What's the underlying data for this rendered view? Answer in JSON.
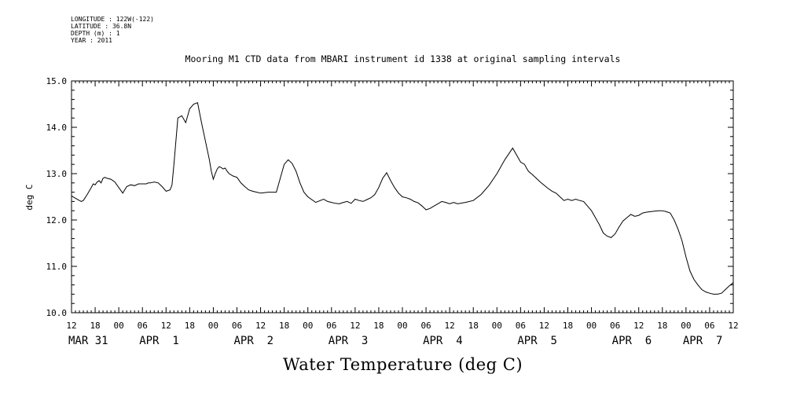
{
  "header": {
    "longitude": "LONGITUDE : 122W(-122)",
    "latitude": "LATITUDE : 36.8N",
    "depth": "DEPTH (m) : 1",
    "year": "YEAR : 2011"
  },
  "chart_data": {
    "type": "line",
    "title": "Mooring M1 CTD data from MBARI instrument id 1338 at original sampling intervals",
    "xlabel": "Water Temperature (deg C)",
    "ylabel": "deg C",
    "ylim": [
      10.0,
      15.0
    ],
    "xlim_hours": [
      0,
      168
    ],
    "y_ticks": [
      "10.0",
      "11.0",
      "12.0",
      "13.0",
      "14.0",
      "15.0"
    ],
    "hour_tick_labels": [
      "12",
      "18",
      "00",
      "06",
      "12",
      "18",
      "00",
      "06",
      "12",
      "18",
      "00",
      "06",
      "12",
      "18",
      "00",
      "06",
      "12",
      "18",
      "00",
      "06",
      "12",
      "18",
      "00",
      "06",
      "12",
      "18",
      "00",
      "06",
      "12"
    ],
    "date_labels": [
      {
        "text": "MAR 31",
        "hour": 0
      },
      {
        "text": "APR  1",
        "hour": 18
      },
      {
        "text": "APR  2",
        "hour": 42
      },
      {
        "text": "APR  3",
        "hour": 66
      },
      {
        "text": "APR  4",
        "hour": 90
      },
      {
        "text": "APR  5",
        "hour": 114
      },
      {
        "text": "APR  6",
        "hour": 138
      },
      {
        "text": "APR  7",
        "hour": 156
      }
    ],
    "grid": false,
    "series": [
      {
        "x": [
          0,
          1,
          2,
          2.5,
          3,
          4,
          5,
          5.5,
          6,
          6.5,
          7,
          7.5,
          8,
          8.5,
          9,
          10,
          11,
          12,
          13,
          14,
          15,
          16,
          17,
          18,
          19,
          19.5,
          20,
          21,
          22,
          23,
          24,
          25,
          25.5,
          26,
          27,
          28,
          29,
          30,
          31,
          32,
          33,
          34,
          34.5,
          35,
          35.5,
          36,
          36.5,
          37,
          37.5,
          38,
          38.5,
          39,
          39.5,
          40,
          41,
          42,
          43,
          44,
          45,
          46,
          47,
          48,
          50,
          52,
          53,
          54,
          55,
          56,
          57,
          58,
          59,
          60,
          62,
          64,
          65,
          66,
          67,
          68,
          69,
          70,
          71,
          72,
          73,
          74,
          75,
          76,
          77,
          78,
          79,
          80,
          81,
          82,
          83,
          84,
          85,
          86,
          87,
          88,
          89,
          90,
          91,
          92,
          93,
          94,
          95,
          96,
          97,
          98,
          100,
          102,
          104,
          106,
          108,
          110,
          112,
          114,
          115,
          115.5,
          116,
          117,
          118,
          119,
          120,
          121,
          122,
          123,
          124,
          125,
          126,
          127,
          128,
          129,
          130,
          131,
          132,
          133,
          134,
          135,
          136,
          137,
          138,
          139,
          140,
          141,
          142,
          143,
          144,
          145,
          146,
          147,
          148,
          149,
          150,
          151,
          152,
          153,
          154,
          155,
          156,
          157,
          158,
          159,
          160,
          161,
          162,
          163,
          164,
          165,
          166,
          167,
          168
        ],
        "y": [
          12.52,
          12.47,
          12.42,
          12.4,
          12.42,
          12.55,
          12.7,
          12.78,
          12.76,
          12.82,
          12.85,
          12.8,
          12.9,
          12.92,
          12.9,
          12.88,
          12.82,
          12.7,
          12.58,
          12.72,
          12.76,
          12.74,
          12.78,
          12.78,
          12.78,
          12.8,
          12.8,
          12.82,
          12.8,
          12.72,
          12.62,
          12.65,
          12.75,
          13.2,
          14.2,
          14.25,
          14.1,
          14.4,
          14.5,
          14.53,
          14.1,
          13.7,
          13.5,
          13.3,
          13.05,
          12.88,
          13.0,
          13.1,
          13.15,
          13.13,
          13.1,
          13.12,
          13.05,
          13.0,
          12.95,
          12.92,
          12.8,
          12.72,
          12.65,
          12.62,
          12.6,
          12.58,
          12.6,
          12.6,
          12.9,
          13.2,
          13.3,
          13.22,
          13.05,
          12.8,
          12.6,
          12.5,
          12.38,
          12.45,
          12.4,
          12.38,
          12.36,
          12.35,
          12.38,
          12.4,
          12.36,
          12.45,
          12.42,
          12.4,
          12.44,
          12.48,
          12.55,
          12.7,
          12.9,
          13.02,
          12.85,
          12.7,
          12.58,
          12.5,
          12.48,
          12.45,
          12.4,
          12.37,
          12.3,
          12.22,
          12.25,
          12.3,
          12.35,
          12.4,
          12.38,
          12.35,
          12.38,
          12.35,
          12.38,
          12.42,
          12.55,
          12.75,
          13.0,
          13.3,
          13.55,
          13.25,
          13.2,
          13.12,
          13.05,
          12.98,
          12.9,
          12.82,
          12.75,
          12.68,
          12.62,
          12.58,
          12.5,
          12.42,
          12.45,
          12.42,
          12.45,
          12.42,
          12.4,
          12.3,
          12.2,
          12.05,
          11.9,
          11.72,
          11.65,
          11.62,
          11.7,
          11.85,
          11.98,
          12.05,
          12.12,
          12.08,
          12.1,
          12.15,
          12.17,
          12.18,
          12.19,
          12.2,
          12.2,
          12.18,
          12.15,
          12.0,
          11.8,
          11.55,
          11.2,
          10.9,
          10.72,
          10.6,
          10.5,
          10.45,
          10.42,
          10.4,
          10.4,
          10.42,
          10.5,
          10.58,
          10.65
        ]
      }
    ]
  }
}
